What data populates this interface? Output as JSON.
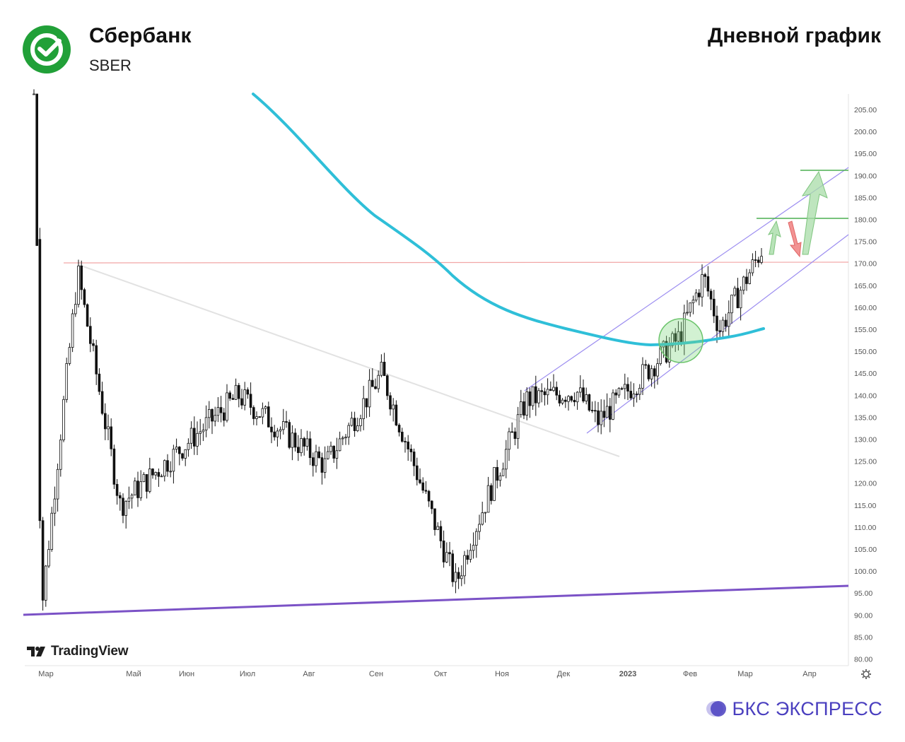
{
  "header": {
    "company": "Сбербанк",
    "ticker": "SBER",
    "chart_title": "Дневной график",
    "logo_icon": "sberbank-check-logo-icon",
    "logo_color": "#21A038"
  },
  "footer": {
    "tradingview_label": "TradingView",
    "brand_label": "БКС ЭКСПРЕСС",
    "brand_color": "#4A3FBF",
    "settings_icon": "gear-icon"
  },
  "chart_data": {
    "type": "candlestick",
    "yaxis": {
      "ticks": [
        "205.00",
        "200.00",
        "195.00",
        "190.00",
        "185.00",
        "180.00",
        "175.00",
        "170.00",
        "165.00",
        "160.00",
        "155.00",
        "150.00",
        "145.00",
        "140.00",
        "135.00",
        "130.00",
        "125.00",
        "120.00",
        "115.00",
        "110.00",
        "105.00",
        "100.00",
        "95.00",
        "90.00",
        "85.00",
        "80.00"
      ],
      "ylim": [
        78,
        208
      ]
    },
    "xaxis": {
      "ticks": [
        "Мар",
        "Май",
        "Июн",
        "Июл",
        "Авг",
        "Сен",
        "Окт",
        "Ноя",
        "Дек",
        "2023",
        "Фев",
        "Мар",
        "Апр"
      ]
    },
    "key_points": [
      {
        "month": "Мар",
        "price": 210
      },
      {
        "month": "Мар",
        "price": 90
      },
      {
        "month": "Мар",
        "price": 168
      },
      {
        "month": "Май",
        "price": 115
      },
      {
        "month": "Июл",
        "price": 140
      },
      {
        "month": "Авг",
        "price": 124
      },
      {
        "month": "Сен",
        "price": 145
      },
      {
        "month": "Окт",
        "price": 97
      },
      {
        "month": "Окт",
        "price": 107
      },
      {
        "month": "Ноя",
        "price": 139
      },
      {
        "month": "Дек",
        "price": 141
      },
      {
        "month": "Дек",
        "price": 134
      },
      {
        "month": "2023",
        "price": 153
      },
      {
        "month": "Фев",
        "price": 167
      },
      {
        "month": "Фев",
        "price": 155
      },
      {
        "month": "Мар",
        "price": 174
      }
    ],
    "annotations": {
      "resistance_level": 170,
      "target_levels": [
        180,
        190
      ],
      "moving_average_color": "#2FBFD8",
      "channel_color": "#9B8CF0",
      "trendline_color": "#7B52C6",
      "resistance_color": "#F2A6A6",
      "up_arrow_color": "#A8DCA8",
      "down_arrow_color": "#F08080"
    },
    "grid": false
  }
}
